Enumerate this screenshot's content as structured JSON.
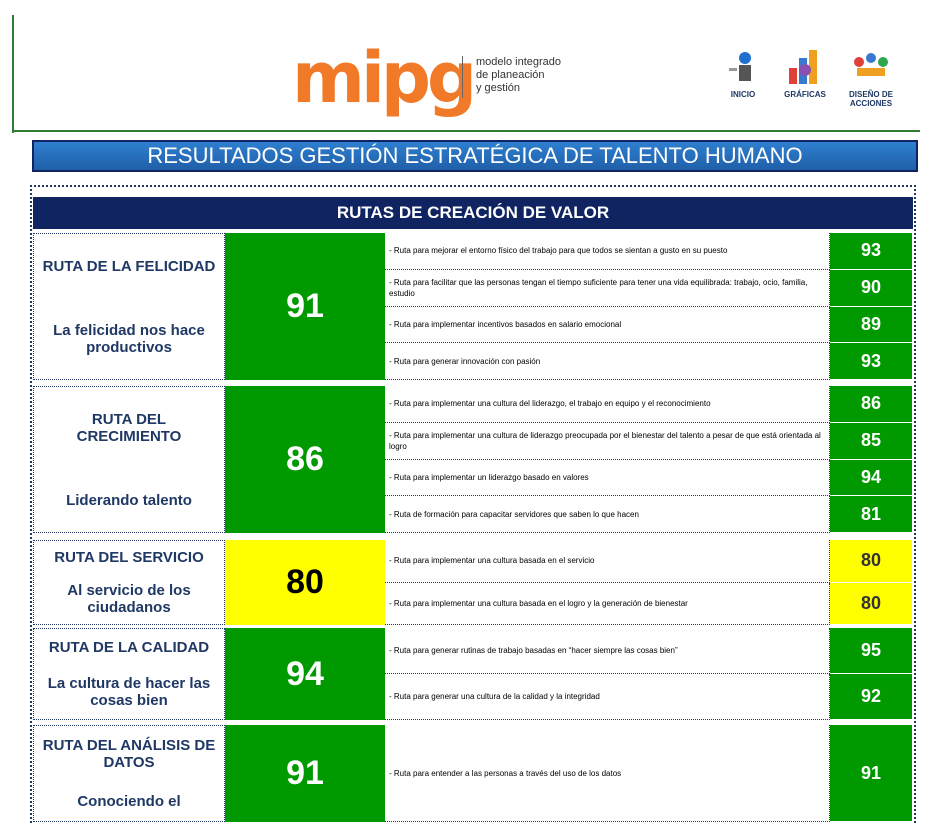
{
  "header": {
    "logo": "mipg",
    "logo_text": [
      "modelo integrado",
      "de planeación",
      "y gestión"
    ],
    "nav": [
      {
        "label": "INICIO"
      },
      {
        "label": "GRÁFICAS"
      },
      {
        "label": "DISEÑO DE ACCIONES"
      }
    ]
  },
  "title": "RESULTADOS GESTIÓN ESTRATÉGICA DE TALENTO HUMANO",
  "section_title": "RUTAS DE CREACIÓN DE VALOR",
  "routes": [
    {
      "name": "RUTA DE LA FELICIDAD",
      "subtitle": "La felicidad nos hace productivos",
      "score": "91",
      "color": "#009a00",
      "items": [
        {
          "text": "- Ruta para mejorar el entorno físico del trabajo para que todos se sientan a gusto en su puesto",
          "score": "93",
          "color": "#009a00"
        },
        {
          "text": "- Ruta para facilitar que las personas tengan el tiempo suficiente para tener una vida equilibrada: trabajo, ocio, familia, estudio",
          "score": "90",
          "color": "#009a00"
        },
        {
          "text": "- Ruta para implementar incentivos basados en salario emocional",
          "score": "89",
          "color": "#009a00"
        },
        {
          "text": "- Ruta para generar innovación con pasión",
          "score": "93",
          "color": "#009a00"
        }
      ]
    },
    {
      "name": "RUTA DEL CRECIMIENTO",
      "subtitle": "Liderando talento",
      "score": "86",
      "color": "#009a00",
      "items": [
        {
          "text": "- Ruta para implementar una cultura del liderazgo, el trabajo en equipo y el reconocimiento",
          "score": "86",
          "color": "#009a00"
        },
        {
          "text": "- Ruta para implementar una cultura de liderazgo preocupada por el bienestar del talento a pesar de que está orientada al logro",
          "score": "85",
          "color": "#009a00"
        },
        {
          "text": "- Ruta para implementar un liderazgo basado en valores",
          "score": "94",
          "color": "#009a00"
        },
        {
          "text": "- Ruta de formación para capacitar servidores que saben lo que hacen",
          "score": "81",
          "color": "#009a00"
        }
      ]
    },
    {
      "name": "RUTA DEL SERVICIO",
      "subtitle": "Al servicio de los ciudadanos",
      "score": "80",
      "color": "#ffff00",
      "items": [
        {
          "text": "- Ruta para implementar una cultura basada en el servicio",
          "score": "80",
          "color": "#ffff00"
        },
        {
          "text": "- Ruta para implementar una cultura basada en el logro y la generación de bienestar",
          "score": "80",
          "color": "#ffff00"
        }
      ]
    },
    {
      "name": "RUTA DE LA CALIDAD",
      "subtitle": "La cultura de hacer las cosas bien",
      "score": "94",
      "color": "#009a00",
      "items": [
        {
          "text": "- Ruta para generar rutinas de trabajo basadas en “hacer siempre las cosas bien”",
          "score": "95",
          "color": "#009a00"
        },
        {
          "text": "- Ruta para generar una cultura de la calidad y la integridad",
          "score": "92",
          "color": "#009a00"
        }
      ]
    },
    {
      "name": "RUTA DEL ANÁLISIS DE DATOS",
      "subtitle": "Conociendo el",
      "score": "91",
      "color": "#009a00",
      "items": [
        {
          "text": "- Ruta para entender a las personas a través del uso de los datos",
          "score": "91",
          "color": "#009a00"
        }
      ]
    }
  ]
}
